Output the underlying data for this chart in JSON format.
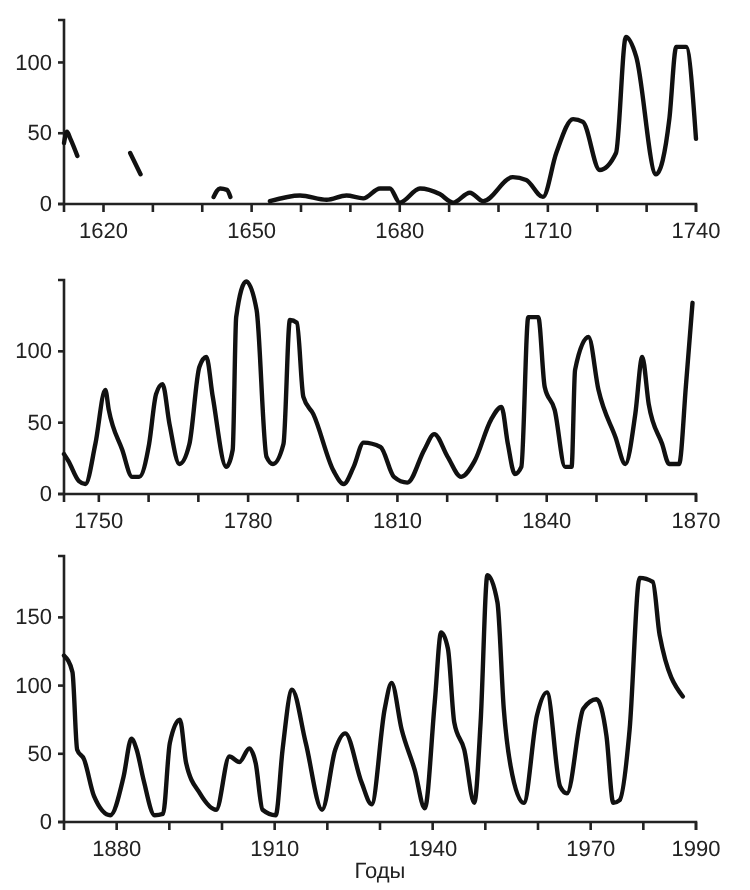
{
  "chart_data": [
    {
      "type": "line",
      "x": [
        1612.0,
        1612.6,
        1613.3,
        1614.7,
        1620.0,
        1625.4,
        1627.5,
        1635.0,
        1642.3,
        1643.6,
        1645.0,
        1645.7,
        1650.0,
        1653.7,
        1659.8,
        1665.2,
        1669.2,
        1672.6,
        1676.0,
        1678.0,
        1680.0,
        1684.1,
        1688.1,
        1690.8,
        1694.2,
        1696.9,
        1702.9,
        1705.6,
        1709.0,
        1711.7,
        1715.1,
        1717.1,
        1720.5,
        1723.8,
        1725.8,
        1727.9,
        1731.9,
        1734.6,
        1736.0,
        1738.0,
        1740.0
      ],
      "series": [
        {
          "color": "#111111",
          "values": [
            43,
            51,
            46,
            34,
            null,
            36,
            21,
            null,
            5,
            11,
            10,
            5,
            null,
            2,
            6,
            3,
            6,
            4,
            11,
            11,
            1,
            11,
            7,
            1,
            8,
            2,
            19,
            17,
            5,
            36,
            60,
            58,
            24,
            36,
            118,
            104,
            21,
            60,
            111,
            111,
            46
          ]
        }
      ],
      "xlim": [
        1612,
        1740
      ],
      "xticks": [
        1620,
        {
          "value": 1630,
          "label": null
        },
        {
          "value": 1640,
          "label": null
        },
        1650,
        {
          "value": 1660,
          "label": null
        },
        {
          "value": 1670,
          "label": null
        },
        1680,
        {
          "value": 1690,
          "label": null
        },
        {
          "value": 1700,
          "label": null
        },
        1710,
        {
          "value": 1720,
          "label": null
        },
        {
          "value": 1730,
          "label": null
        },
        1740
      ],
      "ylim": [
        0,
        130
      ],
      "yticks": [
        0,
        50,
        100
      ],
      "grid": false,
      "marker": "none",
      "line_style": "solid"
    },
    {
      "type": "line",
      "x": [
        1743.0,
        1743.9,
        1746.0,
        1747.3,
        1749.3,
        1751.3,
        1752.0,
        1754.7,
        1756.7,
        1758.1,
        1760.1,
        1761.5,
        1762.8,
        1764.2,
        1766.2,
        1768.2,
        1770.2,
        1771.6,
        1772.9,
        1775.6,
        1776.9,
        1777.6,
        1779.6,
        1781.7,
        1783.7,
        1785.0,
        1787.1,
        1788.4,
        1789.8,
        1791.1,
        1793.1,
        1797.2,
        1799.2,
        1801.2,
        1803.2,
        1806.6,
        1809.3,
        1812.0,
        1815.4,
        1817.4,
        1820.1,
        1822.8,
        1825.5,
        1828.8,
        1830.9,
        1832.2,
        1833.6,
        1834.9,
        1836.3,
        1838.3,
        1839.6,
        1841.6,
        1843.7,
        1845.0,
        1845.7,
        1848.4,
        1850.4,
        1853.8,
        1855.8,
        1857.8,
        1859.2,
        1860.5,
        1863.2,
        1864.6,
        1866.6,
        1868.0,
        1869.3
      ],
      "series": [
        {
          "color": "#111111",
          "values": [
            28,
            23,
            9,
            7,
            35,
            73,
            59,
            31,
            12,
            12,
            35,
            70,
            77,
            49,
            21,
            35,
            89,
            96,
            68,
            19,
            31,
            124,
            149,
            129,
            26,
            21,
            35,
            122,
            120,
            68,
            56,
            16,
            7,
            19,
            36,
            33,
            12,
            8,
            31,
            42,
            26,
            12,
            23,
            52,
            61,
            35,
            14,
            19,
            124,
            124,
            75,
            59,
            19,
            19,
            87,
            110,
            73,
            40,
            21,
            56,
            96,
            63,
            35,
            21,
            21,
            77,
            134
          ]
        }
      ],
      "xlim": [
        1743,
        1870
      ],
      "xticks": [
        1750,
        {
          "value": 1760,
          "label": null
        },
        {
          "value": 1770,
          "label": null
        },
        1780,
        {
          "value": 1790,
          "label": null
        },
        {
          "value": 1800,
          "label": null
        },
        1810,
        {
          "value": 1820,
          "label": null
        },
        {
          "value": 1830,
          "label": null
        },
        1840,
        {
          "value": 1850,
          "label": null
        },
        {
          "value": 1860,
          "label": null
        },
        1870
      ],
      "ylim": [
        0,
        150
      ],
      "yticks": [
        0,
        50,
        100
      ],
      "grid": false,
      "marker": "none",
      "line_style": "solid"
    },
    {
      "type": "line",
      "xlabel": "Годы",
      "x": [
        1870.0,
        1871.6,
        1872.5,
        1873.8,
        1875.7,
        1878.8,
        1881.3,
        1882.8,
        1883.8,
        1885.1,
        1887.2,
        1888.8,
        1890.1,
        1892.0,
        1893.2,
        1895.8,
        1898.9,
        1901.4,
        1903.3,
        1905.2,
        1906.4,
        1907.7,
        1910.2,
        1911.5,
        1913.3,
        1915.9,
        1919.0,
        1921.5,
        1923.4,
        1926.5,
        1928.4,
        1930.9,
        1932.2,
        1934.1,
        1936.6,
        1938.5,
        1940.4,
        1941.6,
        1942.9,
        1944.1,
        1946.0,
        1947.9,
        1949.1,
        1950.4,
        1952.3,
        1953.5,
        1954.8,
        1957.3,
        1959.8,
        1961.7,
        1964.2,
        1965.5,
        1968.6,
        1971.1,
        1973.0,
        1974.3,
        1975.5,
        1977.4,
        1979.3,
        1981.8,
        1983.1,
        1987.5
      ],
      "series": [
        {
          "color": "#111111",
          "values": [
            122,
            110,
            53,
            46,
            19,
            5,
            33,
            61,
            53,
            31,
            5,
            6,
            58,
            75,
            43,
            21,
            9,
            48,
            44,
            54,
            43,
            9,
            5,
            53,
            97,
            58,
            9,
            53,
            65,
            29,
            13,
            83,
            102,
            68,
            38,
            10,
            88,
            139,
            127,
            73,
            53,
            14,
            73,
            181,
            161,
            83,
            41,
            14,
            78,
            95,
            26,
            21,
            83,
            90,
            63,
            14,
            16,
            68,
            179,
            176,
            137,
            92
          ]
        }
      ],
      "xlim": [
        1870,
        1990
      ],
      "xticks": [
        1880,
        {
          "value": 1890,
          "label": null
        },
        {
          "value": 1900,
          "label": null
        },
        1910,
        {
          "value": 1920,
          "label": null
        },
        {
          "value": 1930,
          "label": null
        },
        1940,
        {
          "value": 1950,
          "label": null
        },
        {
          "value": 1960,
          "label": null
        },
        1970,
        {
          "value": 1980,
          "label": null
        },
        1990
      ],
      "ylim": [
        0,
        195
      ],
      "yticks": [
        0,
        50,
        100,
        150
      ],
      "grid": false,
      "marker": "none",
      "line_style": "solid"
    }
  ]
}
